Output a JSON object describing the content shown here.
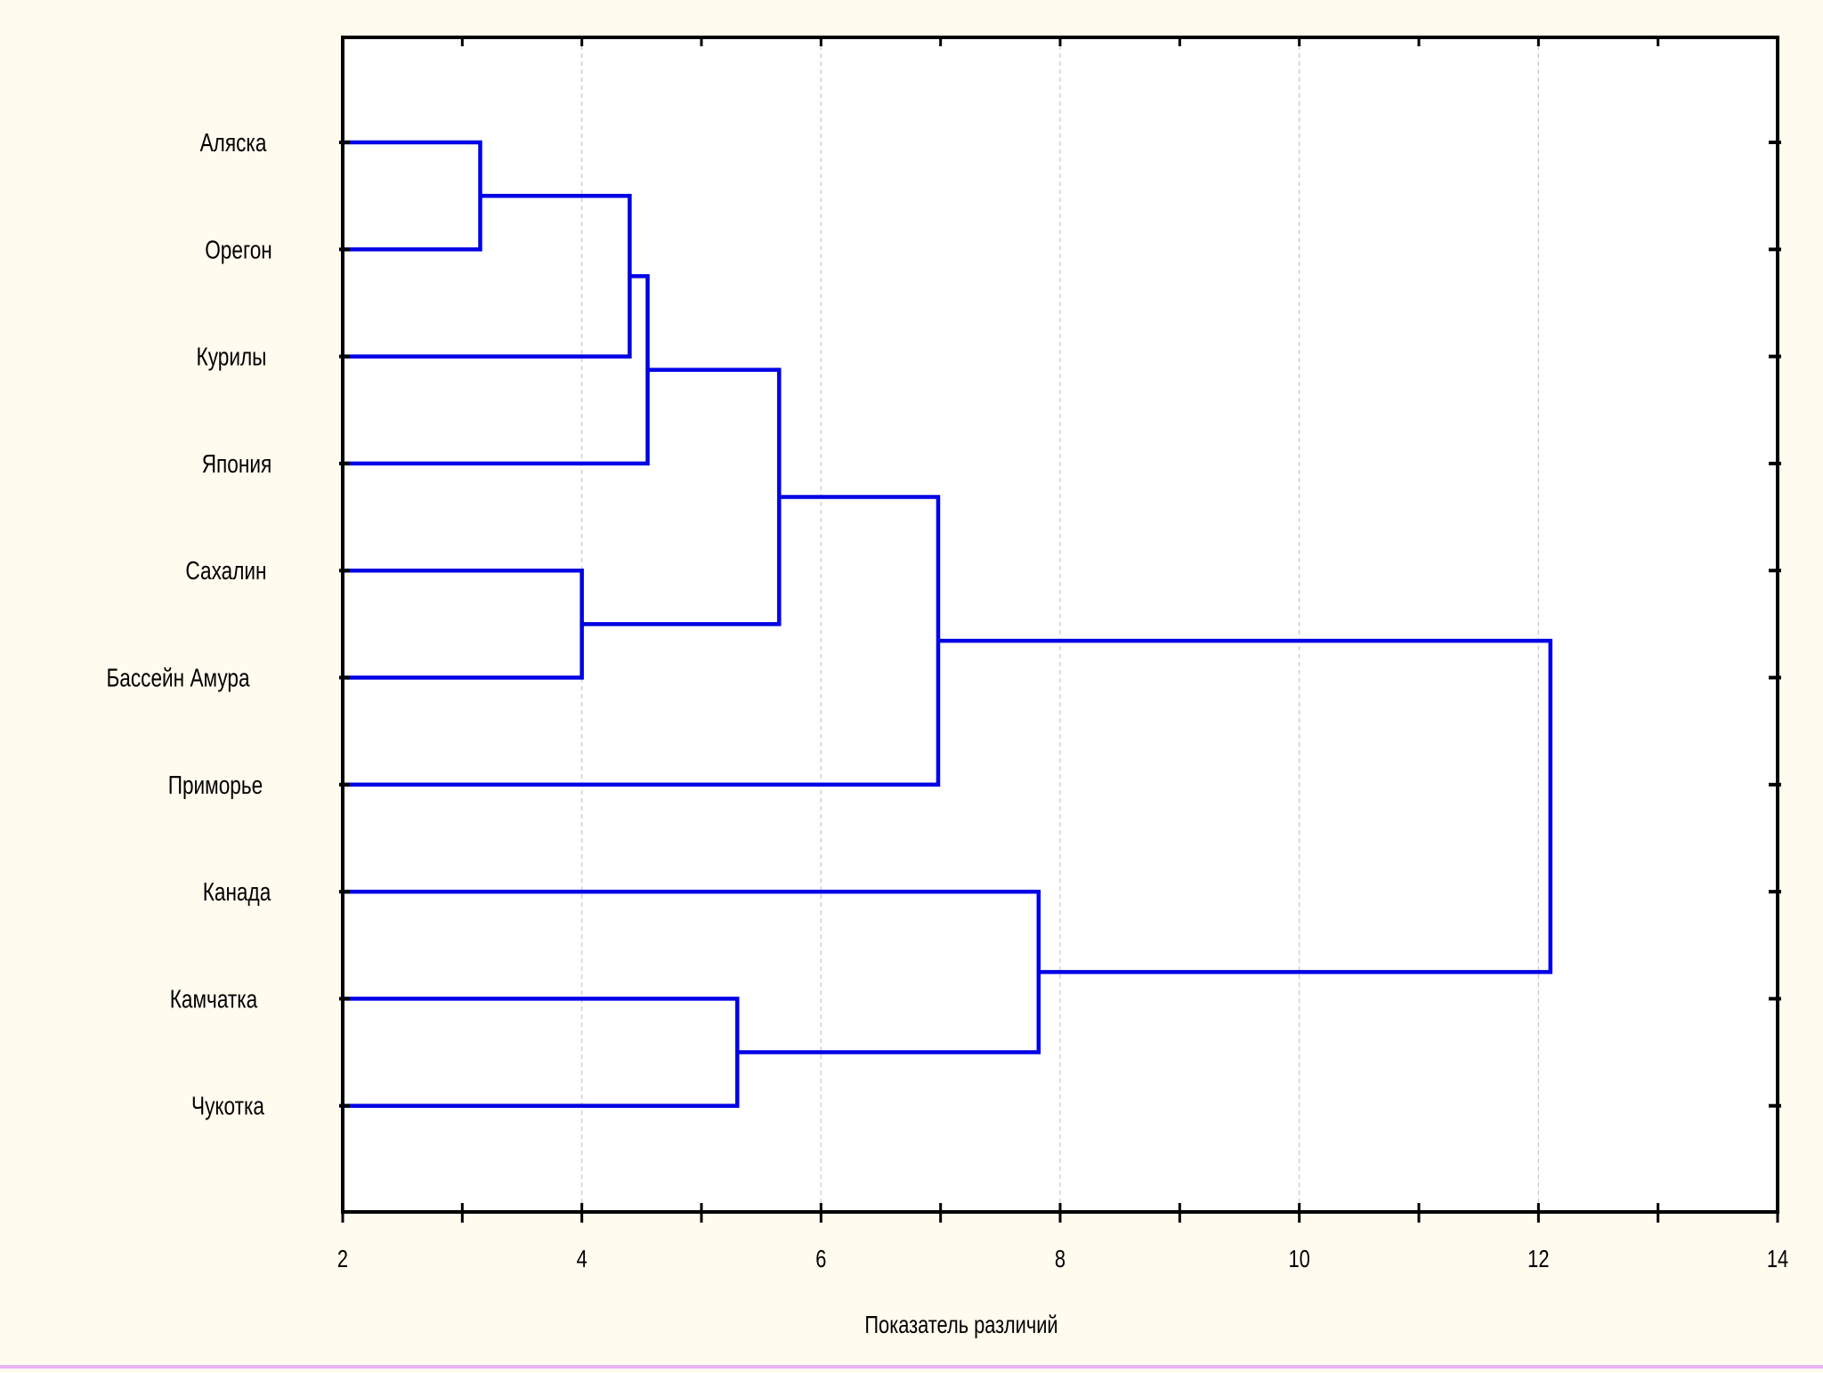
{
  "colors": {
    "background": "#fffbef",
    "plot_background": "#ffffff",
    "link": "#0000e6",
    "axis": "#000000",
    "grid": "#c8c8c8",
    "bottom_rule": "#e8b3f0"
  },
  "chart_data": {
    "type": "dendrogram",
    "orientation": "horizontal",
    "title": "",
    "xlabel": "Показатель различий",
    "ylabel": "",
    "xlim": [
      2,
      14
    ],
    "xticks": [
      "2",
      "4",
      "6",
      "8",
      "10",
      "12",
      "14"
    ],
    "grid": "vertical dashed",
    "leaves": [
      "Аляска",
      "Орегон",
      "Курилы",
      "Япония",
      "Сахалин",
      "Бассейн Амура",
      "Приморье",
      "Канада",
      "Камчатка",
      "Чукотка"
    ],
    "merges": [
      {
        "a": "Аляска",
        "b": "Орегон",
        "height": 3.15
      },
      {
        "a": "Сахалин",
        "b": "Бассейн Амура",
        "height": 4.0
      },
      {
        "a": "Аляска+Орегон",
        "b": "Курилы",
        "height": 4.4
      },
      {
        "a": "Аляска+Орегон+Курилы",
        "b": "Япония",
        "height": 4.55
      },
      {
        "a": "Камчатка",
        "b": "Чукотка",
        "height": 5.3
      },
      {
        "a": "Аляска+Орегон+Курилы+Япония",
        "b": "Сахалин+Бассейн Амура",
        "height": 5.65
      },
      {
        "a": "Аляска…Бассейн Амура",
        "b": "Приморье",
        "height": 6.98
      },
      {
        "a": "Канада",
        "b": "Камчатка+Чукотка",
        "height": 7.82
      },
      {
        "a": "Аляска…Приморье",
        "b": "Канада…Чукотка",
        "height": 12.1
      }
    ]
  }
}
